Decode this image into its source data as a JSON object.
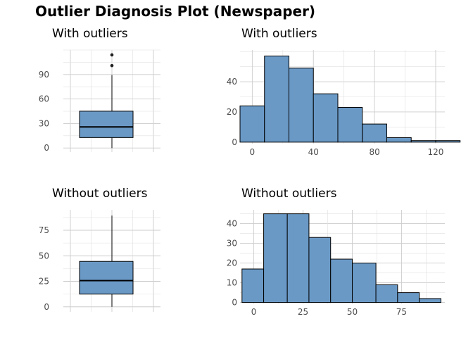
{
  "title": "Outlier Diagnosis Plot (Newspaper)",
  "colors": {
    "fill": "#6a99c6",
    "outline": "#000000"
  },
  "chart_data": [
    {
      "type": "boxplot",
      "title": "With outliers",
      "ylim": [
        -5,
        120
      ],
      "yticks": [
        0,
        30,
        60,
        90
      ],
      "box": {
        "min": 0,
        "q1": 12.8,
        "median": 25.8,
        "q3": 45.1,
        "max": 89.4
      },
      "outliers": [
        100.9,
        114
      ]
    },
    {
      "type": "histogram",
      "title": "With outliers",
      "xlim": [
        -8,
        126
      ],
      "ylim": [
        -1,
        61
      ],
      "xticks": [
        0,
        40,
        80,
        120
      ],
      "yticks": [
        0,
        20,
        40
      ],
      "bins": [
        {
          "start": -8,
          "end": 8,
          "count": 24
        },
        {
          "start": 8,
          "end": 24,
          "count": 57
        },
        {
          "start": 24,
          "end": 40,
          "count": 49
        },
        {
          "start": 40,
          "end": 56,
          "count": 32
        },
        {
          "start": 56,
          "end": 72,
          "count": 23
        },
        {
          "start": 72,
          "end": 88,
          "count": 12
        },
        {
          "start": 88,
          "end": 104,
          "count": 3
        },
        {
          "start": 104,
          "end": 120,
          "count": 1
        },
        {
          "start": 120,
          "end": 136,
          "count": 1
        }
      ]
    },
    {
      "type": "boxplot",
      "title": "Without outliers",
      "ylim": [
        -5,
        95
      ],
      "yticks": [
        0,
        25,
        50,
        75
      ],
      "box": {
        "min": 0,
        "q1": 12.5,
        "median": 25.7,
        "q3": 44.5,
        "max": 89.4
      },
      "outliers": []
    },
    {
      "type": "histogram",
      "title": "Without outliers",
      "xlim": [
        -7,
        97
      ],
      "ylim": [
        -0.5,
        47
      ],
      "xticks": [
        0,
        25,
        50,
        75
      ],
      "yticks": [
        0,
        10,
        20,
        30,
        40
      ],
      "bins": [
        {
          "start": -6,
          "end": 5,
          "count": 17
        },
        {
          "start": 5,
          "end": 17,
          "count": 45
        },
        {
          "start": 17,
          "end": 28,
          "count": 45
        },
        {
          "start": 28,
          "end": 39,
          "count": 33
        },
        {
          "start": 39,
          "end": 50,
          "count": 22
        },
        {
          "start": 50,
          "end": 62,
          "count": 20
        },
        {
          "start": 62,
          "end": 73,
          "count": 9
        },
        {
          "start": 73,
          "end": 84,
          "count": 5
        },
        {
          "start": 84,
          "end": 95,
          "count": 2
        }
      ]
    }
  ]
}
